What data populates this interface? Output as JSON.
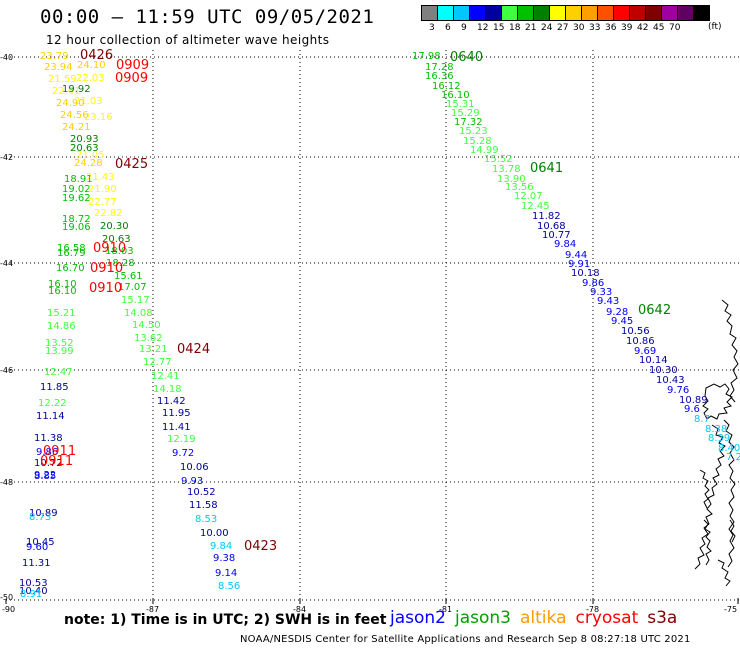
{
  "title": "00:00 – 11:59 UTC 09/05/2021",
  "subtitle": "12 hour collection of altimeter wave heights",
  "color_scale": {
    "unit": "(ft)",
    "colors": [
      "#808080",
      "#00ffff",
      "#00c8ff",
      "#0000ff",
      "#0000a0",
      "#40ff40",
      "#00c000",
      "#008000",
      "#ffff00",
      "#ffd000",
      "#ffa000",
      "#ff5000",
      "#ff0000",
      "#c00000",
      "#800000",
      "#a000a0",
      "#600060",
      "#000000"
    ],
    "labels": [
      "3",
      "6",
      "9",
      "12",
      "15",
      "18",
      "21",
      "24",
      "27",
      "30",
      "33",
      "36",
      "39",
      "42",
      "45",
      "70"
    ]
  },
  "axes": {
    "lat_labels": [
      "-40",
      "-42",
      "-44",
      "-46",
      "-48",
      "-50"
    ],
    "lon_labels": [
      "-90",
      "-87",
      "-84",
      "-81",
      "-78",
      "-75"
    ]
  },
  "passes": [
    {
      "label": "0426",
      "color": "#800000"
    },
    {
      "label": "0909",
      "color": "#ff0000"
    },
    {
      "label": "0909",
      "color": "#ff0000"
    },
    {
      "label": "0425",
      "color": "#800000"
    },
    {
      "label": "0910",
      "color": "#ff0000"
    },
    {
      "label": "0910",
      "color": "#ff0000"
    },
    {
      "label": "0910",
      "color": "#ff0000"
    },
    {
      "label": "0424",
      "color": "#800000"
    },
    {
      "label": "0911",
      "color": "#ff0000"
    },
    {
      "label": "0911",
      "color": "#ff0000"
    },
    {
      "label": "0423",
      "color": "#800000"
    },
    {
      "label": "0640",
      "color": "#008000"
    },
    {
      "label": "0641",
      "color": "#008000"
    },
    {
      "label": "0642",
      "color": "#008000"
    }
  ],
  "obs_west": [
    {
      "v": "23.79",
      "c": "#ffd000"
    },
    {
      "v": "23.94",
      "c": "#ffd000"
    },
    {
      "v": "24.10",
      "c": "#ffd000"
    },
    {
      "v": "21.59",
      "c": "#ffff00"
    },
    {
      "v": "22.03",
      "c": "#ffff00"
    },
    {
      "v": "22.61",
      "c": "#ffff00"
    },
    {
      "v": "19.92",
      "c": "#008000"
    },
    {
      "v": "21.03",
      "c": "#ffff00"
    },
    {
      "v": "24.90",
      "c": "#ffd000"
    },
    {
      "v": "24.56",
      "c": "#ffd000"
    },
    {
      "v": "23.16",
      "c": "#ffff00"
    },
    {
      "v": "24.21",
      "c": "#ffd000"
    },
    {
      "v": "20.93",
      "c": "#008000"
    },
    {
      "v": "20.63",
      "c": "#008000"
    },
    {
      "v": "21.05",
      "c": "#ffff00"
    },
    {
      "v": "24.28",
      "c": "#ffd000"
    },
    {
      "v": "21.43",
      "c": "#ffff00"
    },
    {
      "v": "18.91",
      "c": "#00c000"
    },
    {
      "v": "19.02",
      "c": "#00c000"
    },
    {
      "v": "21.90",
      "c": "#ffff00"
    },
    {
      "v": "19.62",
      "c": "#00c000"
    },
    {
      "v": "22.77",
      "c": "#ffff00"
    },
    {
      "v": "22.82",
      "c": "#ffff00"
    },
    {
      "v": "18.72",
      "c": "#00c000"
    },
    {
      "v": "19.06",
      "c": "#00c000"
    },
    {
      "v": "20.30",
      "c": "#008000"
    },
    {
      "v": "20.63",
      "c": "#008000"
    },
    {
      "v": "16.58",
      "c": "#00c000"
    },
    {
      "v": "16.79",
      "c": "#00c000"
    },
    {
      "v": "18.03",
      "c": "#00c000"
    },
    {
      "v": "18.28",
      "c": "#00c000"
    },
    {
      "v": "16.70",
      "c": "#00c000"
    },
    {
      "v": "15.61",
      "c": "#00c000"
    },
    {
      "v": "16.10",
      "c": "#00c000"
    },
    {
      "v": "17.07",
      "c": "#00c000"
    },
    {
      "v": "16.10",
      "c": "#00c000"
    },
    {
      "v": "15.17",
      "c": "#40ff40"
    },
    {
      "v": "15.21",
      "c": "#40ff40"
    },
    {
      "v": "14.86",
      "c": "#40ff40"
    },
    {
      "v": "14.08",
      "c": "#40ff40"
    },
    {
      "v": "14.50",
      "c": "#40ff40"
    },
    {
      "v": "13.62",
      "c": "#40ff40"
    },
    {
      "v": "13.52",
      "c": "#40ff40"
    },
    {
      "v": "13.99",
      "c": "#40ff40"
    },
    {
      "v": "13.21",
      "c": "#40ff40"
    },
    {
      "v": "12.77",
      "c": "#40ff40"
    },
    {
      "v": "12.47",
      "c": "#40ff40"
    },
    {
      "v": "12.41",
      "c": "#40ff40"
    },
    {
      "v": "11.85",
      "c": "#0000a0"
    },
    {
      "v": "14.18",
      "c": "#40ff40"
    },
    {
      "v": "12.22",
      "c": "#40ff40"
    },
    {
      "v": "11.42",
      "c": "#0000a0"
    },
    {
      "v": "11.14",
      "c": "#0000a0"
    },
    {
      "v": "11.95",
      "c": "#0000a0"
    },
    {
      "v": "11.41",
      "c": "#0000a0"
    },
    {
      "v": "11.38",
      "c": "#0000a0"
    },
    {
      "v": "12.19",
      "c": "#40ff40"
    },
    {
      "v": "9.86",
      "c": "#0000ff"
    },
    {
      "v": "10.72",
      "c": "#0000a0"
    },
    {
      "v": "9.72",
      "c": "#0000ff"
    },
    {
      "v": "10.06",
      "c": "#0000a0"
    },
    {
      "v": "9.22",
      "c": "#0000ff"
    },
    {
      "v": "8.85",
      "c": "#0000ff"
    },
    {
      "v": "9.93",
      "c": "#0000ff"
    },
    {
      "v": "10.52",
      "c": "#0000a0"
    },
    {
      "v": "11.58",
      "c": "#0000a0"
    },
    {
      "v": "10.89",
      "c": "#0000a0"
    },
    {
      "v": "8.73",
      "c": "#00c8ff"
    },
    {
      "v": "8.53",
      "c": "#00c8ff"
    },
    {
      "v": "10.00",
      "c": "#0000a0"
    },
    {
      "v": "10.45",
      "c": "#0000a0"
    },
    {
      "v": "9.60",
      "c": "#0000ff"
    },
    {
      "v": "9.84",
      "c": "#00c8ff"
    },
    {
      "v": "9.38",
      "c": "#0000ff"
    },
    {
      "v": "11.31",
      "c": "#0000a0"
    },
    {
      "v": "9.14",
      "c": "#0000ff"
    },
    {
      "v": "10.53",
      "c": "#0000a0"
    },
    {
      "v": "8.56",
      "c": "#00c8ff"
    },
    {
      "v": "10.40",
      "c": "#0000a0"
    },
    {
      "v": "8.91",
      "c": "#00c8ff"
    },
    {
      "v": "8.34",
      "c": "#00c8ff"
    }
  ],
  "obs_east": [
    {
      "v": "17.98",
      "c": "#00c000"
    },
    {
      "v": "17.28",
      "c": "#00c000"
    },
    {
      "v": "16.36",
      "c": "#00c000"
    },
    {
      "v": "16.12",
      "c": "#00c000"
    },
    {
      "v": "16.10",
      "c": "#00c000"
    },
    {
      "v": "15.31",
      "c": "#40ff40"
    },
    {
      "v": "15.29",
      "c": "#40ff40"
    },
    {
      "v": "17.32",
      "c": "#00c000"
    },
    {
      "v": "15.23",
      "c": "#40ff40"
    },
    {
      "v": "15.28",
      "c": "#40ff40"
    },
    {
      "v": "14.99",
      "c": "#40ff40"
    },
    {
      "v": "15.52",
      "c": "#40ff40"
    },
    {
      "v": "13.78",
      "c": "#40ff40"
    },
    {
      "v": "13.90",
      "c": "#40ff40"
    },
    {
      "v": "13.56",
      "c": "#40ff40"
    },
    {
      "v": "12.07",
      "c": "#40ff40"
    },
    {
      "v": "12.45",
      "c": "#40ff40"
    },
    {
      "v": "11.82",
      "c": "#0000a0"
    },
    {
      "v": "10.68",
      "c": "#0000a0"
    },
    {
      "v": "10.77",
      "c": "#0000a0"
    },
    {
      "v": "9.84",
      "c": "#0000ff"
    },
    {
      "v": "9.44",
      "c": "#0000ff"
    },
    {
      "v": "9.91",
      "c": "#0000ff"
    },
    {
      "v": "10.18",
      "c": "#0000a0"
    },
    {
      "v": "9.86",
      "c": "#0000ff"
    },
    {
      "v": "9.33",
      "c": "#0000ff"
    },
    {
      "v": "9.43",
      "c": "#0000ff"
    },
    {
      "v": "9.28",
      "c": "#0000ff"
    },
    {
      "v": "9.45",
      "c": "#0000ff"
    },
    {
      "v": "10.56",
      "c": "#0000a0"
    },
    {
      "v": "10.86",
      "c": "#0000a0"
    },
    {
      "v": "9.69",
      "c": "#0000ff"
    },
    {
      "v": "10.14",
      "c": "#0000a0"
    },
    {
      "v": "10.30",
      "c": "#0000a0"
    },
    {
      "v": "10.43",
      "c": "#0000a0"
    },
    {
      "v": "9.76",
      "c": "#0000ff"
    },
    {
      "v": "10.89",
      "c": "#0000a0"
    },
    {
      "v": "9.6",
      "c": "#0000ff"
    },
    {
      "v": "8.7",
      "c": "#00c8ff"
    },
    {
      "v": "8.38",
      "c": "#00c8ff"
    },
    {
      "v": "8.39",
      "c": "#00c8ff"
    },
    {
      "v": "8.40",
      "c": "#00c8ff"
    },
    {
      "v": "7.2",
      "c": "#00c8ff"
    }
  ],
  "note": "note:  1) Time is in UTC;  2) SWH is in feet",
  "legend": [
    {
      "name": "jason2",
      "color": "#0000ff"
    },
    {
      "name": "jason3",
      "color": "#00a000"
    },
    {
      "name": "altika",
      "color": "#ff9900"
    },
    {
      "name": "cryosat",
      "color": "#ff0000"
    },
    {
      "name": "s3a",
      "color": "#800000"
    }
  ],
  "footer": "NOAA/NESDIS Center for Satellite Applications and Research   Sep  8 08:27:18 UTC 2021"
}
